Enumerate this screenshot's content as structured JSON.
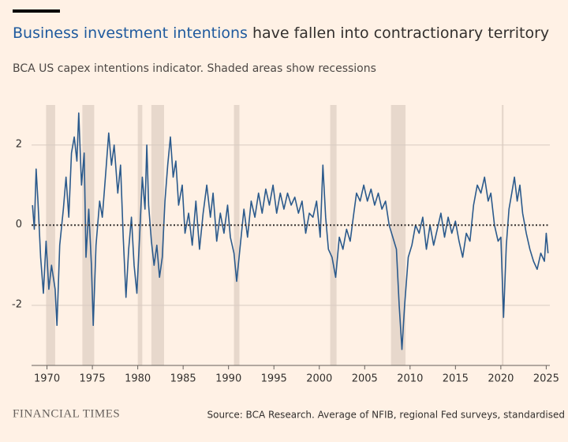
{
  "chart_data": {
    "type": "line",
    "title_highlight": "Business investment intentions",
    "title_rest": "have fallen into contractionary territory",
    "subtitle": "BCA US capex intentions indicator. Shaded areas show recessions",
    "source": "Source: BCA Research. Average of NFIB, regional Fed surveys, standardised",
    "brand": "FINANCIAL TIMES",
    "xlim": [
      1968.3,
      2025.4
    ],
    "ylim": [
      -3.5,
      3.0
    ],
    "xticks": [
      1970,
      1975,
      1980,
      1985,
      1990,
      1995,
      2000,
      2005,
      2010,
      2015,
      2020,
      2025
    ],
    "yticks": [
      -2,
      0,
      2
    ],
    "grid": true,
    "reference_line": 0,
    "recessions": [
      [
        1969.9,
        1970.9
      ],
      [
        1973.9,
        1975.2
      ],
      [
        1980.0,
        1980.5
      ],
      [
        1981.5,
        1982.9
      ],
      [
        1990.6,
        1991.2
      ],
      [
        2001.2,
        2001.9
      ],
      [
        2007.9,
        2009.5
      ],
      [
        2020.1,
        2020.3
      ]
    ],
    "shade_color": "#e7d8cc",
    "series": [
      {
        "color": "#2b5a8c",
        "x": [
          1968.4,
          1968.6,
          1968.8,
          1969.0,
          1969.3,
          1969.6,
          1969.9,
          1970.2,
          1970.5,
          1970.9,
          1971.1,
          1971.4,
          1971.8,
          1972.1,
          1972.4,
          1972.7,
          1973.0,
          1973.3,
          1973.5,
          1973.8,
          1974.1,
          1974.3,
          1974.6,
          1974.9,
          1975.1,
          1975.4,
          1975.8,
          1976.1,
          1976.5,
          1976.8,
          1977.1,
          1977.4,
          1977.8,
          1978.1,
          1978.4,
          1978.7,
          1979.0,
          1979.3,
          1979.6,
          1979.9,
          1980.2,
          1980.5,
          1980.8,
          1981.0,
          1981.2,
          1981.5,
          1981.8,
          1982.1,
          1982.4,
          1982.7,
          1983.0,
          1983.3,
          1983.6,
          1983.9,
          1984.2,
          1984.5,
          1984.9,
          1985.2,
          1985.6,
          1986.0,
          1986.4,
          1986.8,
          1987.2,
          1987.6,
          1988.0,
          1988.3,
          1988.7,
          1989.1,
          1989.5,
          1989.9,
          1990.2,
          1990.6,
          1990.9,
          1991.3,
          1991.7,
          1992.1,
          1992.5,
          1992.9,
          1993.3,
          1993.7,
          1994.1,
          1994.5,
          1994.9,
          1995.3,
          1995.7,
          1996.1,
          1996.5,
          1996.9,
          1997.3,
          1997.7,
          1998.1,
          1998.5,
          1998.9,
          1999.3,
          1999.7,
          2000.1,
          2000.4,
          2000.7,
          2001.0,
          2001.4,
          2001.8,
          2002.2,
          2002.6,
          2003.0,
          2003.4,
          2003.8,
          2004.1,
          2004.5,
          2004.9,
          2005.3,
          2005.7,
          2006.1,
          2006.5,
          2006.9,
          2007.3,
          2007.7,
          2008.1,
          2008.5,
          2008.8,
          2009.1,
          2009.4,
          2009.8,
          2010.2,
          2010.6,
          2011.0,
          2011.4,
          2011.8,
          2012.2,
          2012.6,
          2013.0,
          2013.4,
          2013.8,
          2014.2,
          2014.6,
          2015.0,
          2015.4,
          2015.8,
          2016.2,
          2016.6,
          2017.0,
          2017.4,
          2017.8,
          2018.2,
          2018.6,
          2018.9,
          2019.3,
          2019.7,
          2020.0,
          2020.3,
          2020.6,
          2020.9,
          2021.2,
          2021.5,
          2021.8,
          2022.1,
          2022.4,
          2022.8,
          2023.2,
          2023.6,
          2024.0,
          2024.4,
          2024.8,
          2025.0,
          2025.2
        ],
        "values": [
          0.5,
          -0.1,
          1.4,
          0.6,
          -0.8,
          -1.7,
          -0.4,
          -1.6,
          -1.0,
          -1.6,
          -2.5,
          -0.5,
          0.4,
          1.2,
          0.2,
          1.8,
          2.2,
          1.6,
          2.8,
          1.0,
          1.8,
          -0.8,
          0.4,
          -1.0,
          -2.5,
          -0.5,
          0.6,
          0.2,
          1.4,
          2.3,
          1.5,
          2.0,
          0.8,
          1.5,
          -0.3,
          -1.8,
          -0.6,
          0.2,
          -1.0,
          -1.7,
          -0.3,
          1.2,
          0.4,
          2.0,
          0.5,
          -0.4,
          -1.0,
          -0.5,
          -1.3,
          -0.8,
          0.6,
          1.5,
          2.2,
          1.2,
          1.6,
          0.5,
          1.0,
          -0.2,
          0.3,
          -0.5,
          0.6,
          -0.6,
          0.3,
          1.0,
          0.2,
          0.8,
          -0.4,
          0.3,
          -0.2,
          0.5,
          -0.3,
          -0.7,
          -1.4,
          -0.5,
          0.4,
          -0.3,
          0.6,
          0.2,
          0.8,
          0.3,
          0.9,
          0.5,
          1.0,
          0.3,
          0.8,
          0.4,
          0.8,
          0.5,
          0.7,
          0.3,
          0.6,
          -0.2,
          0.3,
          0.2,
          0.6,
          -0.3,
          1.5,
          0.2,
          -0.6,
          -0.8,
          -1.3,
          -0.3,
          -0.6,
          -0.1,
          -0.4,
          0.3,
          0.8,
          0.6,
          1.0,
          0.6,
          0.9,
          0.5,
          0.8,
          0.4,
          0.6,
          0.0,
          -0.3,
          -0.6,
          -2.0,
          -3.1,
          -2.0,
          -0.8,
          -0.5,
          0.0,
          -0.2,
          0.2,
          -0.6,
          0.0,
          -0.5,
          -0.1,
          0.3,
          -0.3,
          0.2,
          -0.2,
          0.1,
          -0.4,
          -0.8,
          -0.2,
          -0.4,
          0.5,
          1.0,
          0.8,
          1.2,
          0.6,
          0.8,
          0.0,
          -0.4,
          -0.3,
          -2.3,
          -0.5,
          0.4,
          0.8,
          1.2,
          0.6,
          1.0,
          0.3,
          -0.2,
          -0.6,
          -0.9,
          -1.1,
          -0.7,
          -0.9,
          -0.2,
          -0.7
        ]
      }
    ]
  }
}
